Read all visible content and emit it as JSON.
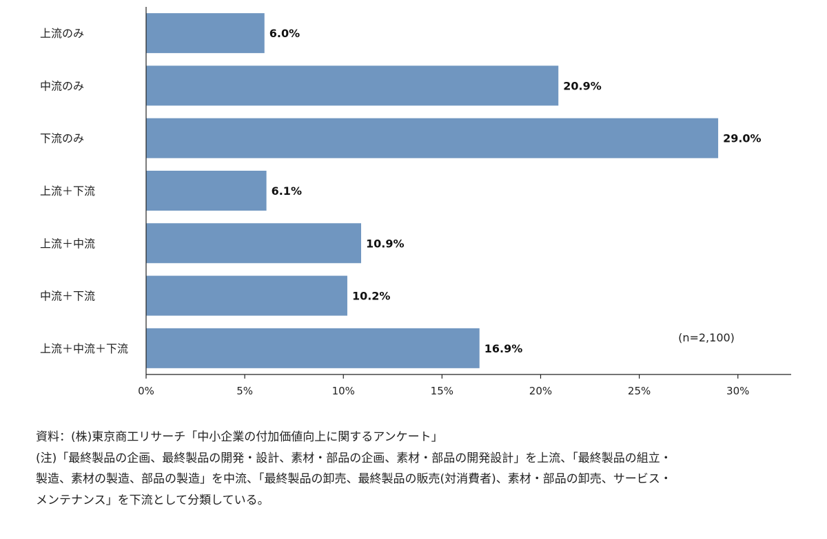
{
  "chart_data": {
    "type": "bar",
    "orientation": "horizontal",
    "categories": [
      "上流のみ",
      "中流のみ",
      "下流のみ",
      "上流＋下流",
      "上流＋中流",
      "中流＋下流",
      "上流＋中流＋下流"
    ],
    "values": [
      6.0,
      20.9,
      29.0,
      6.1,
      10.9,
      10.2,
      16.9
    ],
    "value_labels": [
      "6.0%",
      "20.9%",
      "29.0%",
      "6.1%",
      "10.9%",
      "10.2%",
      "16.9%"
    ],
    "x_ticks": [
      0,
      5,
      10,
      15,
      20,
      25,
      30
    ],
    "x_tick_labels": [
      "0%",
      "5%",
      "10%",
      "15%",
      "20%",
      "25%",
      "30%"
    ],
    "xlim": [
      0,
      32.7
    ],
    "bar_color": "#7096c0",
    "annotation": "(n=2,100)",
    "grid": false
  },
  "notes": {
    "source": "資料：(株)東京商工リサーチ「中小企業の付加価値向上に関するアンケート」",
    "note_lines": [
      "(注)「最終製品の企画、最終製品の開発・設計、素材・部品の企画、素材・部品の開発設計」を上流、「最終製品の組立・",
      "製造、素材の製造、部品の製造」を中流、「最終製品の卸売、最終製品の販売(対消費者)、素材・部品の卸売、サービス・",
      "メンテナンス」を下流として分類している。"
    ]
  }
}
